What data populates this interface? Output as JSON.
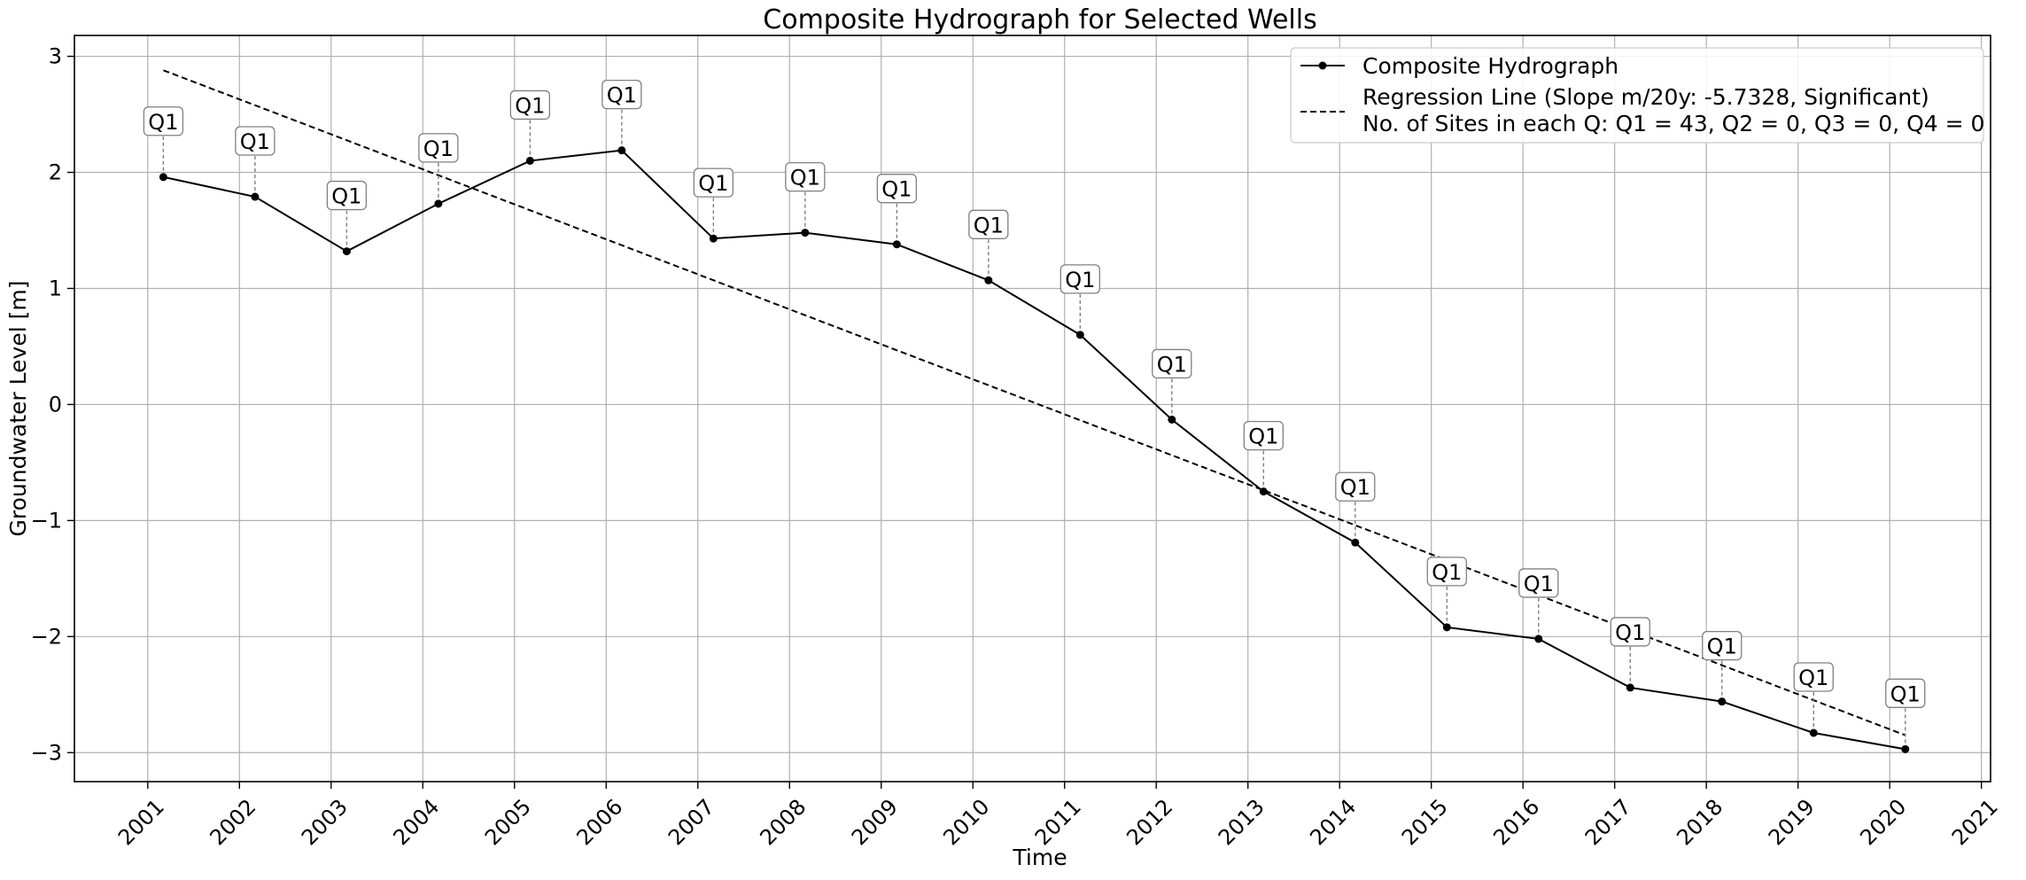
{
  "chart_data": {
    "type": "line",
    "title": "Composite Hydrograph for Selected Wells",
    "xlabel": "Time",
    "ylabel": "Groundwater Level [m]",
    "xlim": [
      2000.2,
      2021.1
    ],
    "ylim": [
      -3.25,
      3.18
    ],
    "x_ticks": [
      2001,
      2002,
      2003,
      2004,
      2005,
      2006,
      2007,
      2008,
      2009,
      2010,
      2011,
      2012,
      2013,
      2014,
      2015,
      2016,
      2017,
      2018,
      2019,
      2020,
      2021
    ],
    "x_tick_labels": [
      "2001",
      "2002",
      "2003",
      "2004",
      "2005",
      "2006",
      "2007",
      "2008",
      "2009",
      "2010",
      "2011",
      "2012",
      "2013",
      "2014",
      "2015",
      "2016",
      "2017",
      "2018",
      "2019",
      "2020",
      "2021"
    ],
    "y_ticks": [
      3,
      2,
      1,
      0,
      -1,
      -2,
      -3
    ],
    "y_tick_labels": [
      "3",
      "2",
      "1",
      "0",
      "−1",
      "−2",
      "−3"
    ],
    "grid": true,
    "legend_position": "top-right",
    "series": [
      {
        "name": "Composite Hydrograph",
        "style": "solid",
        "marker": "circle",
        "color": "#000000",
        "x": [
          2001.17,
          2002.17,
          2003.17,
          2004.17,
          2005.17,
          2006.17,
          2007.17,
          2008.17,
          2009.17,
          2010.17,
          2011.17,
          2012.17,
          2013.17,
          2014.17,
          2015.17,
          2016.17,
          2017.17,
          2018.17,
          2019.17,
          2020.17
        ],
        "values": [
          1.96,
          1.79,
          1.32,
          1.73,
          2.1,
          2.19,
          1.43,
          1.48,
          1.38,
          1.07,
          0.6,
          -0.13,
          -0.75,
          -1.19,
          -1.92,
          -2.02,
          -2.44,
          -2.56,
          -2.83,
          -2.97
        ]
      },
      {
        "name": "Regression Line (Slope m/20y: -5.7328, Significant)",
        "style": "dashed",
        "color": "#000000",
        "x": [
          2001.17,
          2020.17
        ],
        "values": [
          2.88,
          -2.85
        ]
      }
    ],
    "legend_extra_text": "No. of Sites in each Q: Q1 = 43, Q2 = 0, Q3 = 0, Q4 = 0",
    "annotations": [
      {
        "label": "Q1",
        "x": 2001.17,
        "y": 1.96
      },
      {
        "label": "Q1",
        "x": 2002.17,
        "y": 1.79
      },
      {
        "label": "Q1",
        "x": 2003.17,
        "y": 1.32
      },
      {
        "label": "Q1",
        "x": 2004.17,
        "y": 1.73
      },
      {
        "label": "Q1",
        "x": 2005.17,
        "y": 2.1
      },
      {
        "label": "Q1",
        "x": 2006.17,
        "y": 2.19
      },
      {
        "label": "Q1",
        "x": 2007.17,
        "y": 1.43
      },
      {
        "label": "Q1",
        "x": 2008.17,
        "y": 1.48
      },
      {
        "label": "Q1",
        "x": 2009.17,
        "y": 1.38
      },
      {
        "label": "Q1",
        "x": 2010.17,
        "y": 1.07
      },
      {
        "label": "Q1",
        "x": 2011.17,
        "y": 0.6
      },
      {
        "label": "Q1",
        "x": 2012.17,
        "y": -0.13
      },
      {
        "label": "Q1",
        "x": 2013.17,
        "y": -0.75
      },
      {
        "label": "Q1",
        "x": 2014.17,
        "y": -1.19
      },
      {
        "label": "Q1",
        "x": 2015.17,
        "y": -1.92
      },
      {
        "label": "Q1",
        "x": 2016.17,
        "y": -2.02
      },
      {
        "label": "Q1",
        "x": 2017.17,
        "y": -2.44
      },
      {
        "label": "Q1",
        "x": 2018.17,
        "y": -2.56
      },
      {
        "label": "Q1",
        "x": 2019.17,
        "y": -2.83
      },
      {
        "label": "Q1",
        "x": 2020.17,
        "y": -2.97
      }
    ]
  }
}
